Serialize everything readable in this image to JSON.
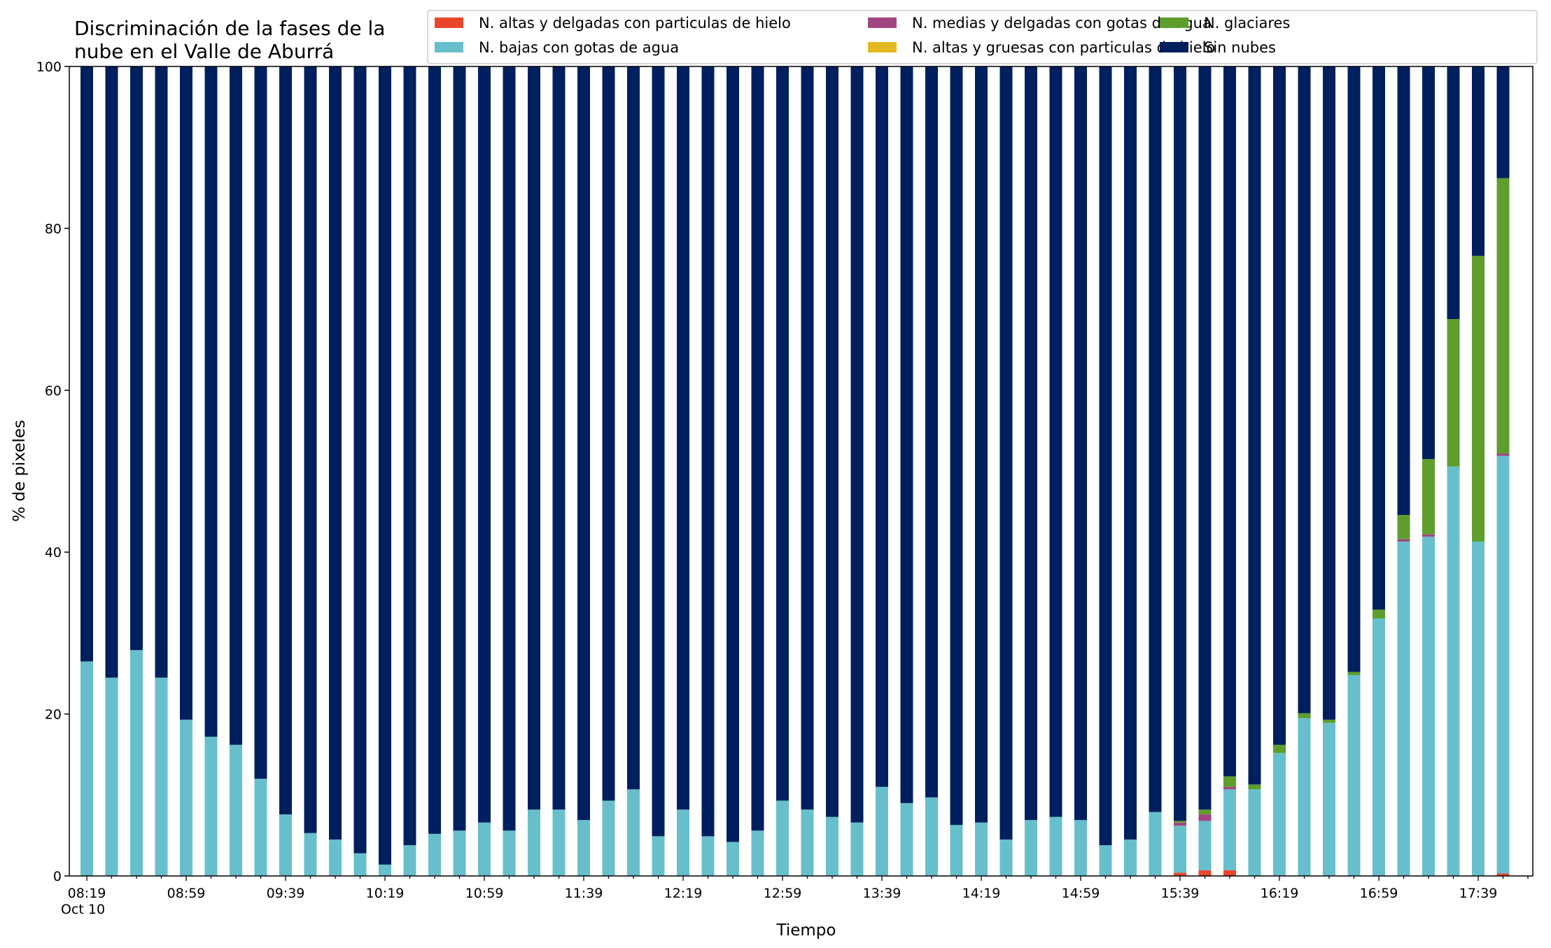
{
  "chart_data": {
    "type": "bar",
    "stacked": true,
    "title_lines": [
      "Discriminación de la fases de la",
      "nube en el Valle de Aburrá"
    ],
    "xlabel": "Tiempo",
    "ylabel": "% de pixeles",
    "ylim": [
      0,
      100
    ],
    "yticks": [
      0,
      20,
      40,
      60,
      80,
      100
    ],
    "grid": false,
    "legend_placement": "top-right",
    "x_tick_labels": [
      "08:19",
      "08:59",
      "09:39",
      "10:19",
      "10:59",
      "11:39",
      "12:19",
      "12:59",
      "13:39",
      "14:19",
      "14:59",
      "15:39",
      "16:19",
      "16:59",
      "17:39"
    ],
    "x_date_label": "Oct 10",
    "categories": [
      "08:19",
      "08:29",
      "08:39",
      "08:49",
      "08:59",
      "09:09",
      "09:19",
      "09:29",
      "09:39",
      "09:49",
      "09:59",
      "10:09",
      "10:19",
      "10:29",
      "10:39",
      "10:49",
      "10:59",
      "11:09",
      "11:19",
      "11:29",
      "11:39",
      "11:49",
      "11:59",
      "12:09",
      "12:19",
      "12:29",
      "12:39",
      "12:49",
      "12:59",
      "13:09",
      "13:19",
      "13:29",
      "13:39",
      "13:49",
      "13:59",
      "14:09",
      "14:19",
      "14:29",
      "14:39",
      "14:49",
      "14:59",
      "15:09",
      "15:19",
      "15:29",
      "15:39",
      "15:49",
      "15:59",
      "16:09",
      "16:19",
      "16:29",
      "16:39",
      "16:49",
      "16:59",
      "17:09",
      "17:19",
      "17:29",
      "17:39",
      "17:49"
    ],
    "series": [
      {
        "name": "N. altas y delgadas con particulas de hielo",
        "color": "#e8472a",
        "values": [
          0,
          0,
          0,
          0,
          0,
          0,
          0,
          0,
          0,
          0,
          0,
          0,
          0,
          0,
          0,
          0,
          0,
          0,
          0,
          0,
          0,
          0,
          0,
          0,
          0,
          0,
          0,
          0,
          0,
          0,
          0,
          0,
          0,
          0,
          0,
          0,
          0,
          0,
          0,
          0,
          0,
          0,
          0,
          0,
          0.4,
          0.7,
          0.7,
          0,
          0,
          0,
          0,
          0,
          0,
          0,
          0,
          0,
          0,
          0.3
        ]
      },
      {
        "name": "N. bajas con gotas de agua",
        "color": "#67bfcc",
        "values": [
          26.5,
          24.5,
          27.9,
          24.5,
          19.3,
          17.2,
          16.2,
          12.0,
          7.6,
          5.3,
          4.5,
          2.8,
          1.4,
          3.8,
          5.2,
          5.6,
          6.6,
          5.6,
          8.2,
          8.2,
          6.9,
          9.3,
          10.7,
          4.9,
          8.2,
          4.9,
          4.2,
          5.6,
          9.3,
          8.2,
          7.3,
          6.6,
          11.0,
          9.0,
          9.7,
          6.3,
          6.6,
          4.5,
          6.9,
          7.3,
          6.9,
          3.8,
          4.5,
          7.9,
          5.8,
          6.1,
          10.0,
          10.7,
          15.2,
          19.5,
          18.9,
          24.8,
          31.8,
          41.3,
          41.9,
          50.6,
          41.3,
          51.6
        ]
      },
      {
        "name": "N. medias y delgadas con gotas de agua",
        "color": "#a24681",
        "values": [
          0,
          0,
          0,
          0,
          0,
          0,
          0,
          0,
          0,
          0,
          0,
          0,
          0,
          0,
          0,
          0,
          0,
          0,
          0,
          0,
          0,
          0,
          0,
          0,
          0,
          0,
          0,
          0,
          0,
          0,
          0,
          0,
          0,
          0,
          0,
          0,
          0,
          0,
          0,
          0,
          0,
          0,
          0,
          0,
          0.4,
          0.8,
          0.3,
          0,
          0,
          0,
          0,
          0,
          0,
          0.3,
          0.3,
          0,
          0,
          0.3
        ]
      },
      {
        "name": "N. altas y gruesas con particulas de hielo",
        "color": "#e3b820",
        "values": [
          0,
          0,
          0,
          0,
          0,
          0,
          0,
          0,
          0,
          0,
          0,
          0,
          0,
          0,
          0,
          0,
          0,
          0,
          0,
          0,
          0,
          0,
          0,
          0,
          0,
          0,
          0,
          0,
          0,
          0,
          0,
          0,
          0,
          0,
          0,
          0,
          0,
          0,
          0,
          0,
          0,
          0,
          0,
          0,
          0,
          0,
          0,
          0,
          0,
          0,
          0,
          0,
          0,
          0,
          0,
          0,
          0,
          0
        ]
      },
      {
        "name": "N. glaciares",
        "color": "#5e9e2d",
        "values": [
          0,
          0,
          0,
          0,
          0,
          0,
          0,
          0,
          0,
          0,
          0,
          0,
          0,
          0,
          0,
          0,
          0,
          0,
          0,
          0,
          0,
          0,
          0,
          0,
          0,
          0,
          0,
          0,
          0,
          0,
          0,
          0,
          0,
          0,
          0,
          0,
          0,
          0,
          0,
          0,
          0,
          0,
          0,
          0,
          0.2,
          0.6,
          1.3,
          0.6,
          1.0,
          0.6,
          0.4,
          0.4,
          1.1,
          3.0,
          9.3,
          18.2,
          35.3,
          34.0
        ]
      },
      {
        "name": "Sin nubes",
        "color": "#001f5e",
        "values": [
          73.5,
          75.5,
          72.1,
          75.5,
          80.7,
          82.8,
          83.8,
          88.0,
          92.4,
          94.7,
          95.5,
          97.2,
          98.6,
          96.2,
          94.8,
          94.4,
          93.4,
          94.4,
          91.8,
          91.8,
          93.1,
          90.7,
          89.3,
          95.1,
          91.8,
          95.1,
          95.8,
          94.4,
          90.7,
          91.8,
          92.7,
          93.4,
          89.0,
          91.0,
          90.3,
          93.7,
          93.4,
          95.5,
          93.1,
          92.7,
          93.1,
          96.2,
          95.5,
          92.1,
          93.2,
          91.8,
          87.7,
          88.7,
          83.8,
          79.9,
          80.7,
          74.8,
          67.1,
          55.4,
          48.5,
          31.2,
          23.4,
          13.8
        ]
      }
    ],
    "legend": [
      {
        "label": "N. altas y delgadas con particulas de hielo",
        "color": "#e8472a"
      },
      {
        "label": "N. bajas con gotas de agua",
        "color": "#67bfcc"
      },
      {
        "label": "N. medias y delgadas con gotas de agua",
        "color": "#a24681"
      },
      {
        "label": "N. altas y gruesas con particulas de hielo",
        "color": "#e3b820"
      },
      {
        "label": "N. glaciares",
        "color": "#5e9e2d"
      },
      {
        "label": "Sin nubes",
        "color": "#001f5e"
      }
    ]
  }
}
